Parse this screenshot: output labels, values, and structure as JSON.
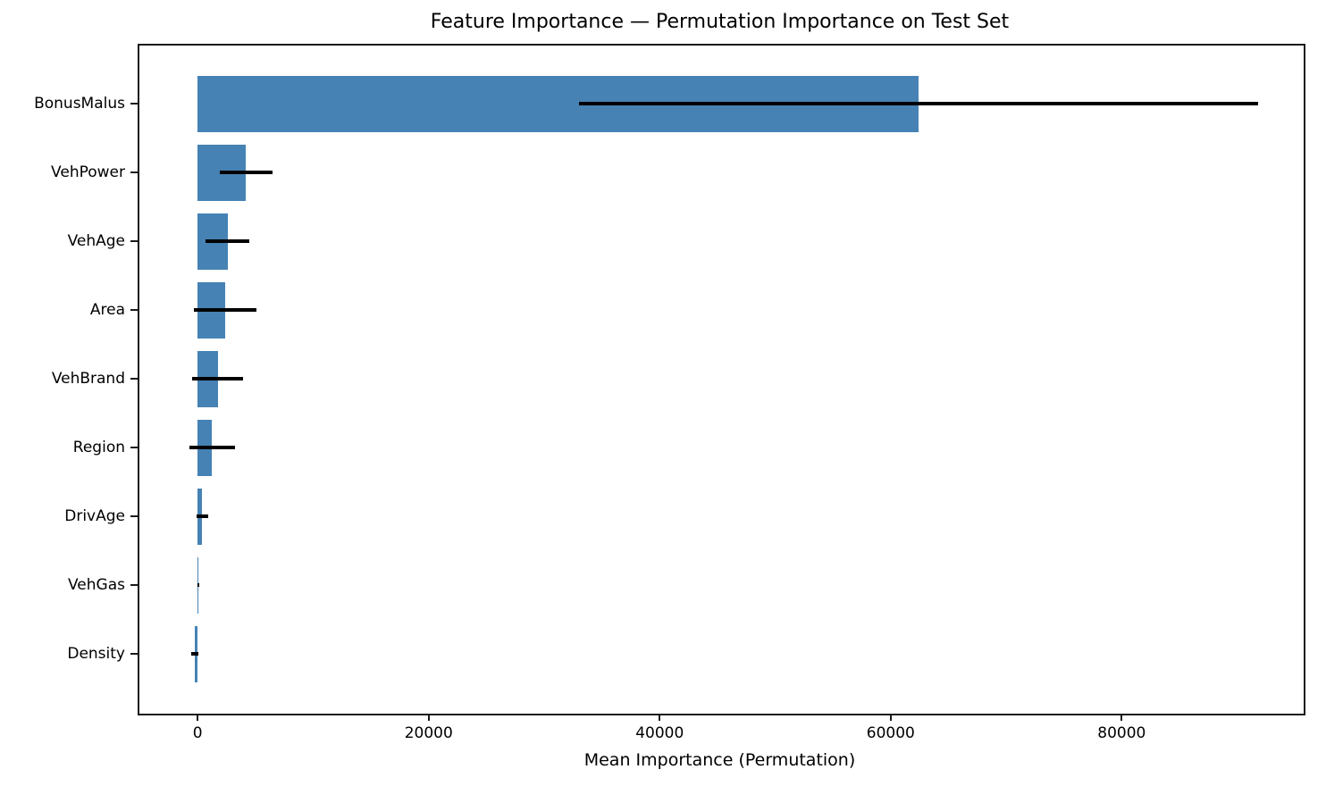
{
  "chart_data": {
    "type": "bar",
    "orientation": "horizontal",
    "title": "Feature Importance — Permutation Importance on Test Set",
    "xlabel": "Mean Importance (Permutation)",
    "ylabel": "",
    "categories": [
      "BonusMalus",
      "VehPower",
      "VehAge",
      "Area",
      "VehBrand",
      "Region",
      "DrivAge",
      "VehGas",
      "Density"
    ],
    "series": [
      {
        "name": "Mean permutation importance",
        "values": [
          62400,
          4200,
          2600,
          2400,
          1750,
          1250,
          400,
          50,
          -270
        ],
        "errors": [
          29400,
          2300,
          1900,
          2700,
          2200,
          2000,
          500,
          70,
          300
        ]
      }
    ],
    "x_ticks": [
      0,
      20000,
      40000,
      60000,
      80000
    ],
    "x_tick_labels": [
      "0",
      "20000",
      "40000",
      "60000",
      "80000"
    ],
    "xlim": [
      -5200,
      95600
    ],
    "grid": false,
    "legend": null,
    "bar_color": "#4682B4",
    "error_color": "#000000",
    "background_color": "#ffffff"
  }
}
